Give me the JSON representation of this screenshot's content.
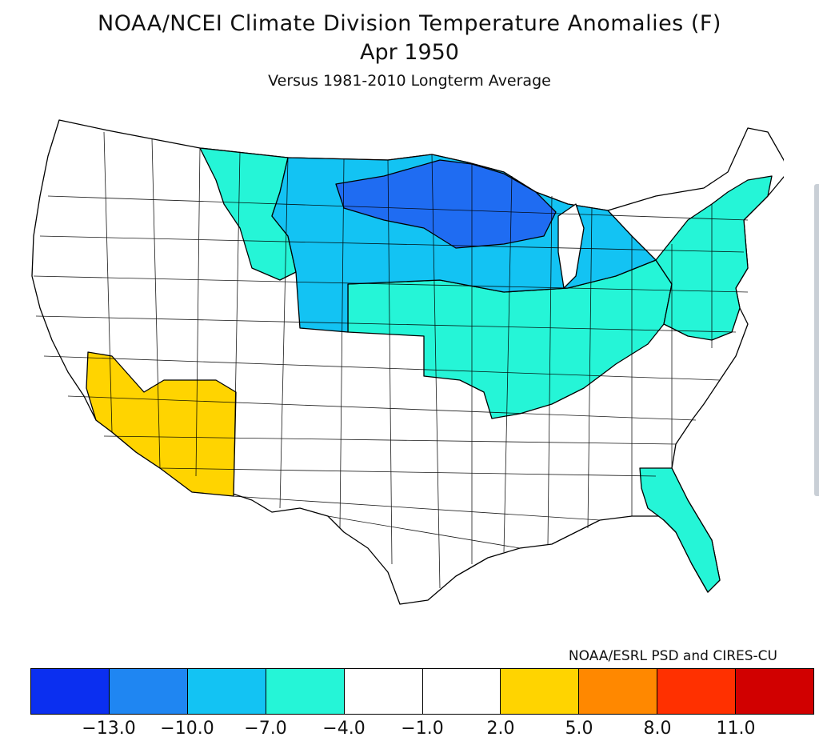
{
  "title": {
    "line1": "NOAA/NCEI Climate Division Temperature Anomalies (F)",
    "line2": "Apr 1950",
    "line3": "Versus 1981-2010 Longterm Average"
  },
  "credit": "NOAA/ESRL PSD and CIRES-CU",
  "colorbar": {
    "colors": [
      "#0b2ff0",
      "#1f86f2",
      "#13c3f3",
      "#25f5d7",
      "#ffffff",
      "#ffffff",
      "#ffd400",
      "#ff8800",
      "#ff3000",
      "#d10000"
    ],
    "ticks": [
      "-13.0",
      "-10.0",
      "-7.0",
      "-4.0",
      "-1.0",
      "2.0",
      "5.0",
      "8.0",
      "11.0"
    ]
  },
  "map": {
    "regions": [
      {
        "name": "upper-midwest",
        "category": "-13 to -10",
        "color": "#1f6cf2"
      },
      {
        "name": "northern-plains-great-lakes",
        "category": "-10 to -7",
        "color": "#13c3f3"
      },
      {
        "name": "montana-plains",
        "category": "-7 to -4",
        "color": "#25f5d7"
      },
      {
        "name": "central-plains-ohio-valley",
        "category": "-7 to -4",
        "color": "#25f5d7"
      },
      {
        "name": "northeast",
        "category": "-7 to -4",
        "color": "#25f5d7"
      },
      {
        "name": "georgia-florida",
        "category": "-7 to -4",
        "color": "#25f5d7"
      },
      {
        "name": "california-arizona",
        "category": "2 to 5",
        "color": "#ffd400"
      }
    ]
  }
}
